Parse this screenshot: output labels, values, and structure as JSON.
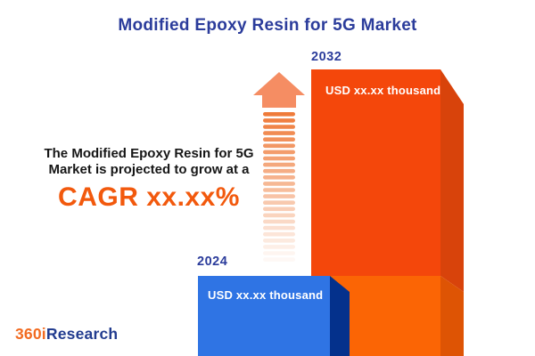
{
  "header": {
    "title": "Modified Epoxy Resin for 5G Market"
  },
  "annotation": {
    "line1": "The Modified Epoxy Resin for 5G",
    "line2": "Market is projected to grow at a",
    "cagr": "CAGR xx.xx%"
  },
  "chart_data": {
    "type": "bar",
    "categories": [
      "2024",
      "2032"
    ],
    "value_labels": [
      "USD xx.xx thousand",
      "USD xx.xx thousand"
    ],
    "values_masked": true,
    "relative_heights": [
      0.28,
      1.0
    ],
    "title": "Modified Epoxy Resin for 5G Market",
    "annotation": "The Modified Epoxy Resin for 5G Market is projected to grow at a CAGR xx.xx%",
    "legend": "none",
    "grid": "off",
    "orientation": "vertical-3d"
  },
  "bars": {
    "b2024": {
      "year": "2024",
      "value": "USD xx.xx thousand",
      "face": "#2F74E4",
      "side": "#04318C"
    },
    "b2032": {
      "year": "2032",
      "value": "USD xx.xx thousand",
      "face_upper": "#F4470B",
      "face_lower": "#FB6505",
      "side_upper": "#D8430B",
      "side_lower": "#DE5404"
    }
  },
  "arrow": {
    "icon": "growth-arrow-icon",
    "head_color": "#F58D63",
    "stripe_color": "#EF7B3A",
    "stripe_count": 24
  },
  "colors": {
    "title_blue": "#2B3C9B",
    "text_dark": "#161616",
    "cagr_orange": "#F2590D",
    "background": "#FFFFFF"
  },
  "logo": {
    "part1": "360i",
    "part2": "Research",
    "part1_color": "#F26B21",
    "part2_color": "#223C8F"
  }
}
